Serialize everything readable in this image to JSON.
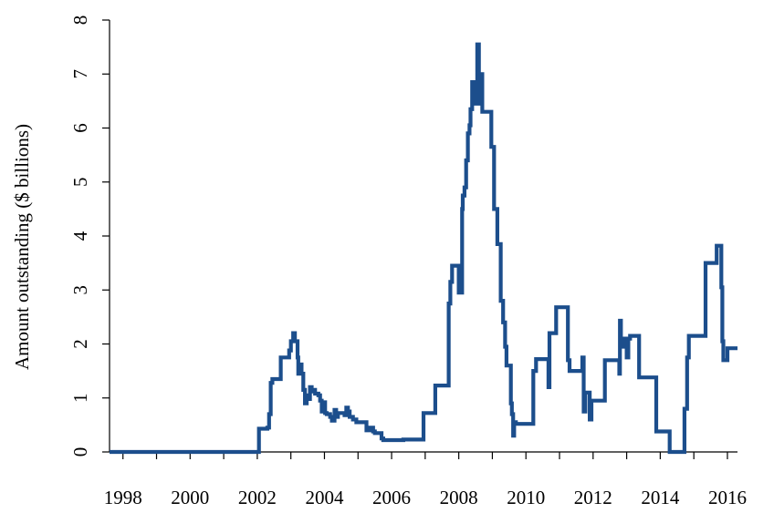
{
  "chart_data": {
    "type": "line",
    "title": "",
    "xlabel": "",
    "ylabel": "Amount outstanding ($ billions)",
    "xlim": [
      1997.6,
      2016.3
    ],
    "ylim": [
      0,
      8
    ],
    "x_ticks": [
      1998,
      2000,
      2002,
      2004,
      2006,
      2008,
      2010,
      2012,
      2014,
      2016
    ],
    "x_tick_labels": [
      "1998",
      "2000",
      "2002",
      "2004",
      "2006",
      "2008",
      "2010",
      "2012",
      "2014",
      "2016"
    ],
    "y_ticks": [
      0,
      1,
      2,
      3,
      4,
      5,
      6,
      7,
      8
    ],
    "y_tick_labels": [
      "0",
      "1",
      "2",
      "3",
      "4",
      "5",
      "6",
      "7",
      "8"
    ],
    "x_minor_ticks": [
      1999,
      2001,
      2003,
      2005,
      2007,
      2009,
      2011,
      2013,
      2015
    ],
    "grid": false,
    "legend": "none",
    "colors": {
      "series": "#1c4e8c",
      "axis": "#000000"
    },
    "series": [
      {
        "step": true,
        "points": [
          [
            1997.6,
            0
          ],
          [
            2002.0,
            0
          ],
          [
            2002.05,
            0.43
          ],
          [
            2002.3,
            0.45
          ],
          [
            2002.35,
            0.7
          ],
          [
            2002.4,
            1.28
          ],
          [
            2002.45,
            1.35
          ],
          [
            2002.65,
            1.35
          ],
          [
            2002.7,
            1.75
          ],
          [
            2002.9,
            1.75
          ],
          [
            2002.95,
            1.88
          ],
          [
            2003.0,
            2.05
          ],
          [
            2003.07,
            2.2
          ],
          [
            2003.12,
            2.05
          ],
          [
            2003.2,
            1.75
          ],
          [
            2003.22,
            1.45
          ],
          [
            2003.27,
            1.62
          ],
          [
            2003.32,
            1.45
          ],
          [
            2003.37,
            1.15
          ],
          [
            2003.42,
            0.9
          ],
          [
            2003.47,
            1.05
          ],
          [
            2003.52,
            0.98
          ],
          [
            2003.57,
            1.2
          ],
          [
            2003.62,
            1.12
          ],
          [
            2003.67,
            1.15
          ],
          [
            2003.72,
            1.08
          ],
          [
            2003.82,
            1.05
          ],
          [
            2003.87,
            0.95
          ],
          [
            2003.92,
            0.75
          ],
          [
            2003.97,
            0.92
          ],
          [
            2004.02,
            0.72
          ],
          [
            2004.07,
            0.7
          ],
          [
            2004.17,
            0.65
          ],
          [
            2004.22,
            0.58
          ],
          [
            2004.3,
            0.78
          ],
          [
            2004.35,
            0.65
          ],
          [
            2004.4,
            0.72
          ],
          [
            2004.6,
            0.68
          ],
          [
            2004.65,
            0.82
          ],
          [
            2004.7,
            0.75
          ],
          [
            2004.75,
            0.65
          ],
          [
            2004.85,
            0.6
          ],
          [
            2004.95,
            0.55
          ],
          [
            2005.25,
            0.4
          ],
          [
            2005.35,
            0.45
          ],
          [
            2005.45,
            0.38
          ],
          [
            2005.5,
            0.35
          ],
          [
            2005.7,
            0.25
          ],
          [
            2005.75,
            0.22
          ],
          [
            2006.3,
            0.22
          ],
          [
            2006.35,
            0.23
          ],
          [
            2006.9,
            0.23
          ],
          [
            2006.95,
            0.72
          ],
          [
            2007.25,
            0.72
          ],
          [
            2007.3,
            1.23
          ],
          [
            2007.65,
            1.23
          ],
          [
            2007.7,
            2.75
          ],
          [
            2007.75,
            3.15
          ],
          [
            2007.8,
            3.45
          ],
          [
            2008.05,
            3.45
          ],
          [
            2008.0,
            2.95
          ],
          [
            2008.1,
            4.5
          ],
          [
            2008.12,
            4.75
          ],
          [
            2008.17,
            4.9
          ],
          [
            2008.22,
            5.4
          ],
          [
            2008.27,
            5.9
          ],
          [
            2008.32,
            6.05
          ],
          [
            2008.35,
            6.35
          ],
          [
            2008.4,
            6.85
          ],
          [
            2008.45,
            6.45
          ],
          [
            2008.5,
            6.85
          ],
          [
            2008.55,
            7.55
          ],
          [
            2008.6,
            6.45
          ],
          [
            2008.65,
            7.0
          ],
          [
            2008.7,
            6.3
          ],
          [
            2008.95,
            6.3
          ],
          [
            2008.97,
            5.65
          ],
          [
            2009.05,
            4.5
          ],
          [
            2009.15,
            3.85
          ],
          [
            2009.25,
            2.8
          ],
          [
            2009.32,
            2.4
          ],
          [
            2009.38,
            1.95
          ],
          [
            2009.42,
            1.6
          ],
          [
            2009.52,
            1.6
          ],
          [
            2009.55,
            0.9
          ],
          [
            2009.58,
            0.7
          ],
          [
            2009.62,
            0.3
          ],
          [
            2009.65,
            0.55
          ],
          [
            2009.7,
            0.52
          ],
          [
            2010.2,
            0.52
          ],
          [
            2010.22,
            1.5
          ],
          [
            2010.3,
            1.72
          ],
          [
            2010.65,
            1.72
          ],
          [
            2010.67,
            1.2
          ],
          [
            2010.7,
            2.2
          ],
          [
            2010.87,
            2.2
          ],
          [
            2010.9,
            2.68
          ],
          [
            2011.2,
            2.68
          ],
          [
            2011.25,
            1.7
          ],
          [
            2011.3,
            1.5
          ],
          [
            2011.65,
            1.5
          ],
          [
            2011.68,
            1.75
          ],
          [
            2011.72,
            0.75
          ],
          [
            2011.77,
            1.1
          ],
          [
            2011.9,
            0.6
          ],
          [
            2011.95,
            0.95
          ],
          [
            2012.3,
            0.95
          ],
          [
            2012.35,
            1.7
          ],
          [
            2012.75,
            1.7
          ],
          [
            2012.78,
            1.45
          ],
          [
            2012.8,
            2.43
          ],
          [
            2012.83,
            1.95
          ],
          [
            2012.9,
            2.1
          ],
          [
            2013.0,
            1.75
          ],
          [
            2013.05,
            2.1
          ],
          [
            2013.1,
            2.15
          ],
          [
            2013.35,
            2.15
          ],
          [
            2013.37,
            1.38
          ],
          [
            2013.85,
            1.38
          ],
          [
            2013.88,
            0.38
          ],
          [
            2014.25,
            0.38
          ],
          [
            2014.28,
            0
          ],
          [
            2014.7,
            0
          ],
          [
            2014.72,
            0.8
          ],
          [
            2014.8,
            1.75
          ],
          [
            2014.85,
            2.15
          ],
          [
            2015.3,
            2.15
          ],
          [
            2015.35,
            3.5
          ],
          [
            2015.65,
            3.5
          ],
          [
            2015.68,
            3.82
          ],
          [
            2015.8,
            3.82
          ],
          [
            2015.82,
            3.05
          ],
          [
            2015.85,
            2.05
          ],
          [
            2015.88,
            1.7
          ],
          [
            2015.97,
            1.7
          ],
          [
            2016.0,
            1.92
          ],
          [
            2016.3,
            1.92
          ]
        ]
      }
    ]
  }
}
